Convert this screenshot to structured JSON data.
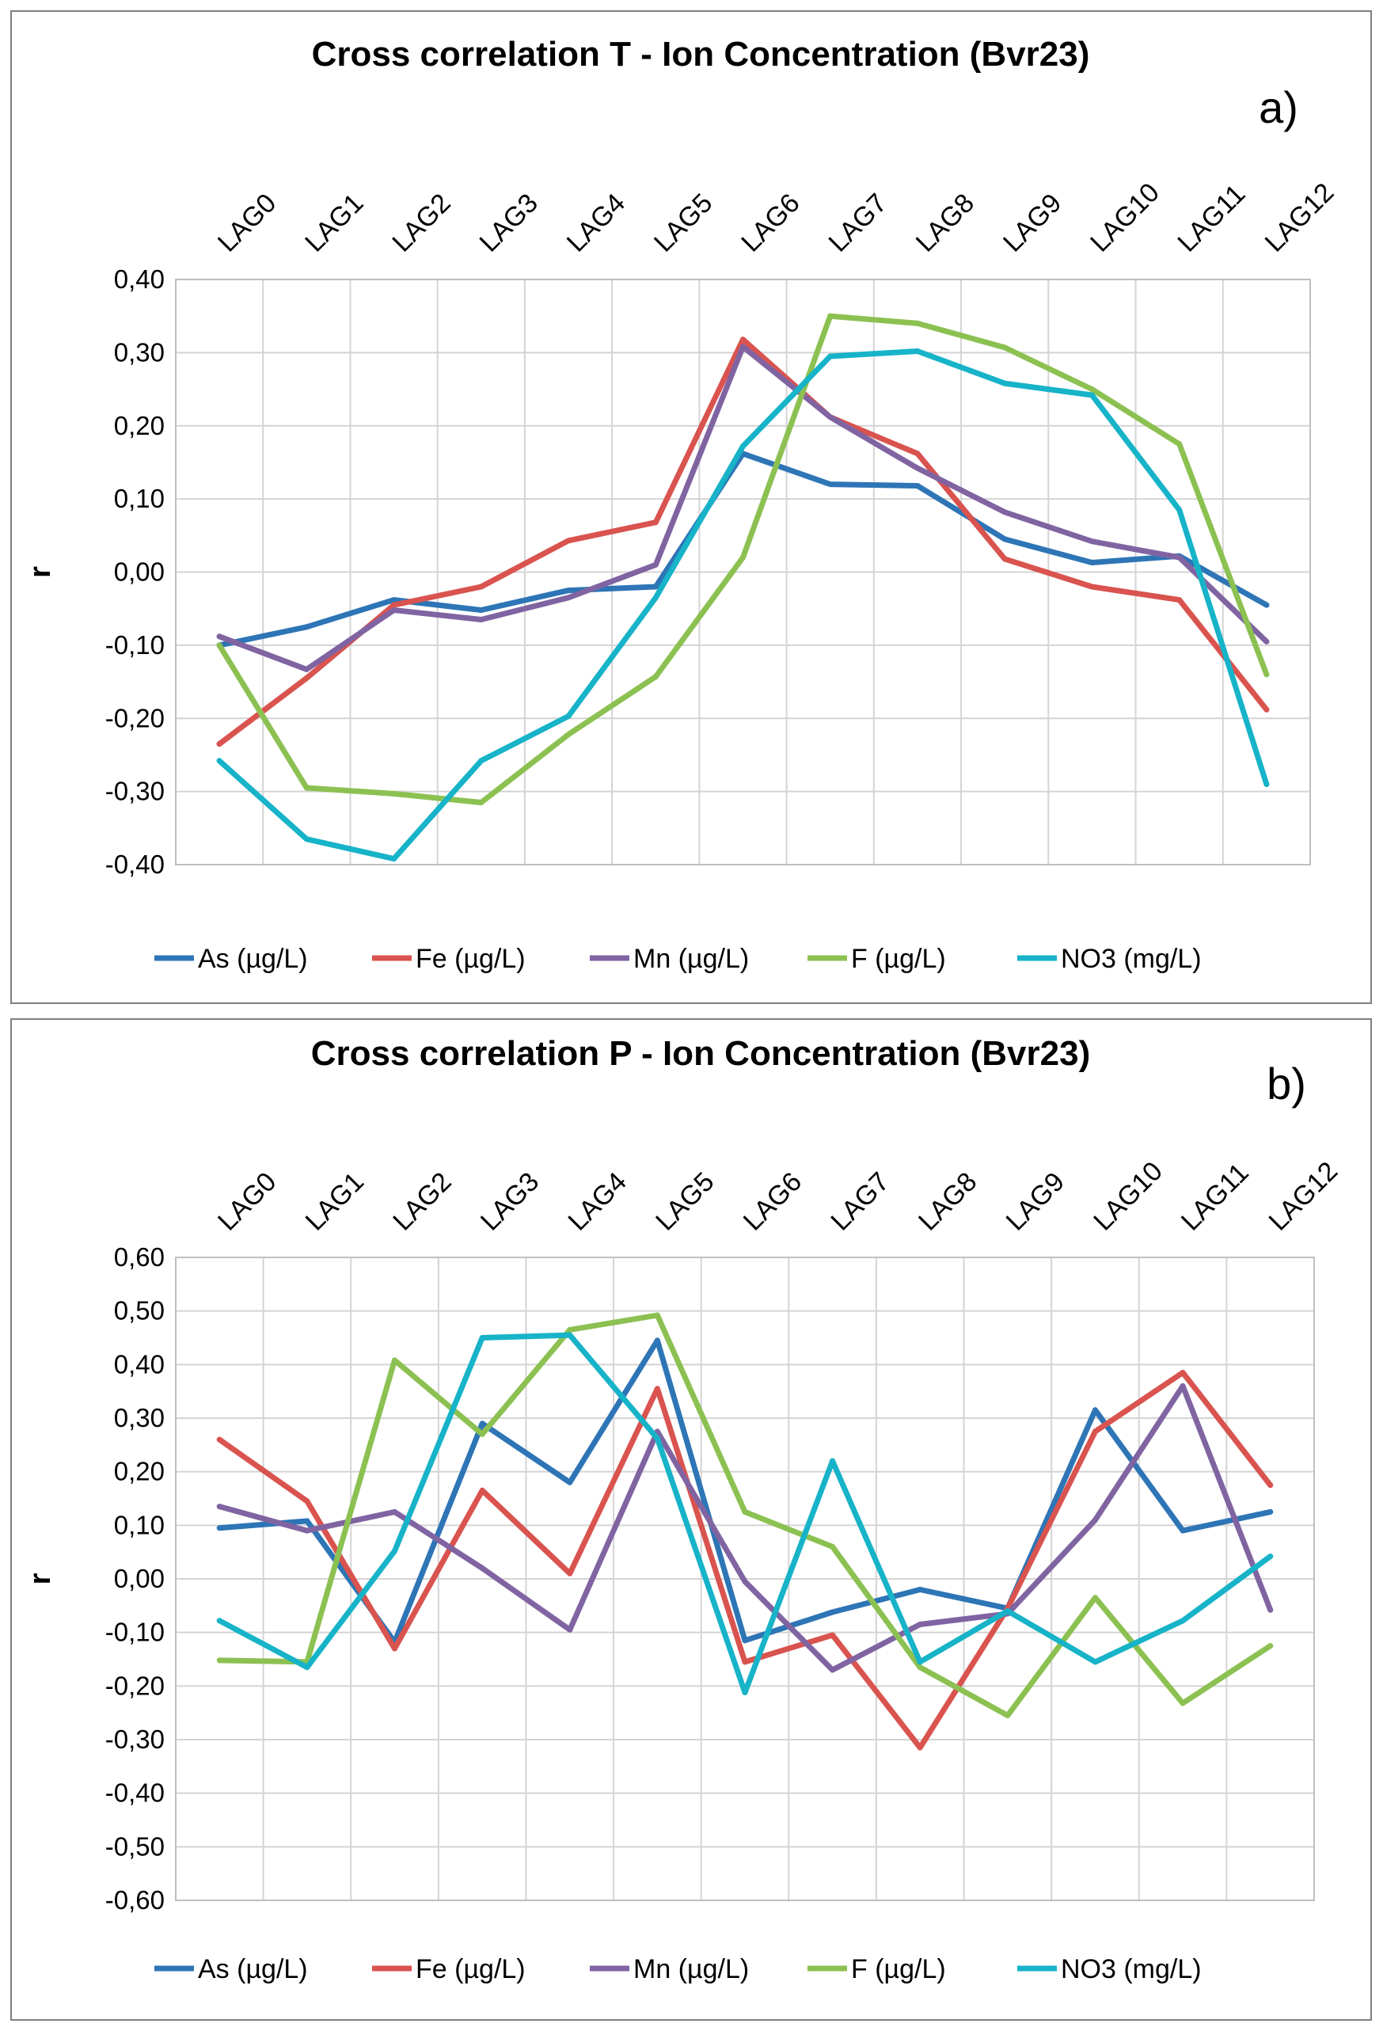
{
  "chart_data": [
    {
      "type": "line",
      "title": "Cross correlation  T - Ion Concentration (Bvr23)",
      "panel_label": "a)",
      "xlabel": "",
      "ylabel": "r",
      "categories": [
        "LAG0",
        "LAG1",
        "LAG2",
        "LAG3",
        "LAG4",
        "LAG5",
        "LAG6",
        "LAG7",
        "LAG8",
        "LAG9",
        "LAG10",
        "LAG11",
        "LAG12"
      ],
      "ylim": [
        -0.4,
        0.4
      ],
      "ystep": 0.1,
      "yticks": [
        "-0,40",
        "-0,30",
        "-0,20",
        "-0,10",
        "0,00",
        "0,10",
        "0,20",
        "0,30",
        "0,40"
      ],
      "grid": true,
      "legend": "bottom",
      "series": [
        {
          "name": "As (µg/L)",
          "color": "#2e75b6",
          "values": [
            -0.1,
            -0.075,
            -0.038,
            -0.052,
            -0.025,
            -0.02,
            0.162,
            0.12,
            0.118,
            0.045,
            0.013,
            0.022,
            -0.045
          ]
        },
        {
          "name": "Fe (µg/L)",
          "color": "#d9534f",
          "values": [
            -0.235,
            -0.145,
            -0.045,
            -0.02,
            0.043,
            0.068,
            0.318,
            0.212,
            0.162,
            0.018,
            -0.02,
            -0.038,
            -0.188
          ]
        },
        {
          "name": "Mn (µg/L)",
          "color": "#8064a2",
          "values": [
            -0.088,
            -0.133,
            -0.052,
            -0.065,
            -0.035,
            0.01,
            0.308,
            0.212,
            0.142,
            0.082,
            0.042,
            0.02,
            -0.095
          ]
        },
        {
          "name": "F (µg/L)",
          "color": "#8cc152",
          "values": [
            -0.1,
            -0.295,
            -0.303,
            -0.315,
            -0.222,
            -0.143,
            0.02,
            0.35,
            0.34,
            0.307,
            0.25,
            0.175,
            -0.14
          ]
        },
        {
          "name": "NO3 (mg/L)",
          "color": "#17b3c8",
          "values": [
            -0.258,
            -0.365,
            -0.392,
            -0.258,
            -0.197,
            -0.035,
            0.172,
            0.295,
            0.302,
            0.258,
            0.242,
            0.085,
            -0.29
          ]
        }
      ]
    },
    {
      "type": "line",
      "title": "Cross correlation  P - Ion Concentration (Bvr23)",
      "panel_label": "b)",
      "xlabel": "",
      "ylabel": "r",
      "categories": [
        "LAG0",
        "LAG1",
        "LAG2",
        "LAG3",
        "LAG4",
        "LAG5",
        "LAG6",
        "LAG7",
        "LAG8",
        "LAG9",
        "LAG10",
        "LAG11",
        "LAG12"
      ],
      "ylim": [
        -0.6,
        0.6
      ],
      "ystep": 0.1,
      "yticks": [
        "-0,60",
        "-0,50",
        "-0,40",
        "-0,30",
        "-0,20",
        "-0,10",
        "0,00",
        "0,10",
        "0,20",
        "0,30",
        "0,40",
        "0,50",
        "0,60"
      ],
      "grid": true,
      "legend": "bottom",
      "series": [
        {
          "name": "As (µg/L)",
          "color": "#2e75b6",
          "values": [
            0.095,
            0.108,
            -0.118,
            0.29,
            0.18,
            0.445,
            -0.115,
            -0.062,
            -0.02,
            -0.055,
            0.315,
            0.09,
            0.125
          ]
        },
        {
          "name": "Fe (µg/L)",
          "color": "#d9534f",
          "values": [
            0.26,
            0.145,
            -0.13,
            0.165,
            0.01,
            0.355,
            -0.155,
            -0.105,
            -0.315,
            -0.055,
            0.275,
            0.385,
            0.175
          ]
        },
        {
          "name": "Mn (µg/L)",
          "color": "#8064a2",
          "values": [
            0.135,
            0.09,
            0.125,
            0.02,
            -0.095,
            0.275,
            -0.005,
            -0.17,
            -0.085,
            -0.065,
            0.11,
            0.36,
            -0.058
          ]
        },
        {
          "name": "F (µg/L)",
          "color": "#8cc152",
          "values": [
            -0.152,
            -0.155,
            0.408,
            0.27,
            0.465,
            0.492,
            0.125,
            0.06,
            -0.165,
            -0.255,
            -0.035,
            -0.232,
            -0.125
          ]
        },
        {
          "name": "NO3 (mg/L)",
          "color": "#17b3c8",
          "values": [
            -0.078,
            -0.165,
            0.052,
            0.45,
            0.455,
            0.262,
            -0.212,
            0.22,
            -0.155,
            -0.06,
            -0.155,
            -0.078,
            0.042
          ]
        }
      ]
    }
  ]
}
